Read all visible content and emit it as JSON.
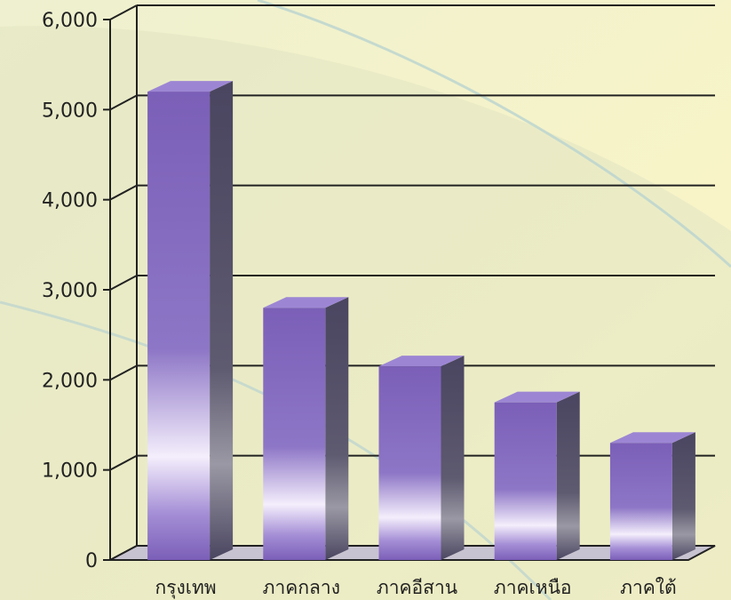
{
  "chart_data": {
    "type": "bar",
    "title": "",
    "xlabel": "",
    "ylabel": "",
    "categories": [
      "กรุงเทพ",
      "ภาคกลาง",
      "ภาคอีสาน",
      "ภาคเหนือ",
      "ภาคใต้"
    ],
    "values": [
      5200,
      2800,
      2150,
      1750,
      1300
    ],
    "ylim": [
      0,
      6000
    ],
    "yticks": [
      0,
      1000,
      2000,
      3000,
      4000,
      5000,
      6000
    ],
    "ytick_labels": [
      "0",
      "1,000",
      "2,000",
      "3,000",
      "4,000",
      "5,000",
      "6,000"
    ],
    "grid": true,
    "style": "3d",
    "colors": {
      "bar_front": "#7b5fb8",
      "bar_side": "#4a4560",
      "bar_top": "#9c86d4",
      "grid": "#222222",
      "background": "#fdf6c4",
      "floor": "#c8c3d0"
    }
  }
}
